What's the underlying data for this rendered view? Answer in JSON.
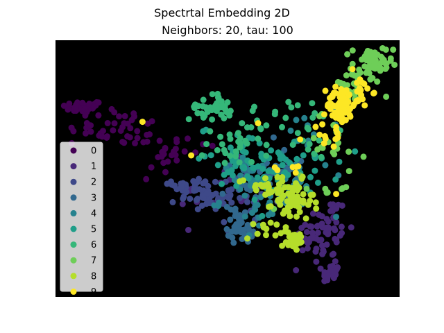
{
  "chart_data": {
    "type": "scatter",
    "title": "Spectrtal Embedding 2D",
    "subtitle": "Neighbors: 20, tau: 100",
    "xlabel": "",
    "ylabel": "",
    "xlim": [
      0,
      1
    ],
    "ylim": [
      0,
      1
    ],
    "axes_visible": false,
    "background": "#000000",
    "grid": false,
    "legend_position": "center-left",
    "colors": [
      "#440154",
      "#482878",
      "#3e4989",
      "#31688e",
      "#26828e",
      "#1f9e89",
      "#35b779",
      "#6ece58",
      "#b5de2b",
      "#fde725"
    ],
    "series": [
      {
        "name": "0",
        "clusters": [
          {
            "cx": 0.08,
            "cy": 0.74,
            "sx": 0.03,
            "sy": 0.012,
            "n": 45
          },
          {
            "cx": 0.18,
            "cy": 0.66,
            "sx": 0.07,
            "sy": 0.035,
            "n": 40
          },
          {
            "cx": 0.33,
            "cy": 0.58,
            "sx": 0.07,
            "sy": 0.04,
            "n": 22
          },
          {
            "cx": 0.3,
            "cy": 0.5,
            "sx": 0.03,
            "sy": 0.03,
            "n": 6
          }
        ]
      },
      {
        "name": "1",
        "clusters": [
          {
            "cx": 0.79,
            "cy": 0.26,
            "sx": 0.03,
            "sy": 0.07,
            "n": 55
          },
          {
            "cx": 0.73,
            "cy": 0.23,
            "sx": 0.02,
            "sy": 0.03,
            "n": 18
          },
          {
            "cx": 0.8,
            "cy": 0.09,
            "sx": 0.012,
            "sy": 0.02,
            "n": 25
          },
          {
            "cx": 0.48,
            "cy": 0.4,
            "sx": 0.06,
            "sy": 0.06,
            "n": 15
          }
        ]
      },
      {
        "name": "2",
        "clusters": [
          {
            "cx": 0.44,
            "cy": 0.39,
            "sx": 0.04,
            "sy": 0.025,
            "n": 50
          },
          {
            "cx": 0.4,
            "cy": 0.44,
            "sx": 0.03,
            "sy": 0.02,
            "n": 20
          },
          {
            "cx": 0.54,
            "cy": 0.37,
            "sx": 0.05,
            "sy": 0.05,
            "n": 15
          }
        ]
      },
      {
        "name": "3",
        "clusters": [
          {
            "cx": 0.54,
            "cy": 0.28,
            "sx": 0.02,
            "sy": 0.035,
            "n": 45
          },
          {
            "cx": 0.58,
            "cy": 0.44,
            "sx": 0.05,
            "sy": 0.05,
            "n": 25
          },
          {
            "cx": 0.64,
            "cy": 0.52,
            "sx": 0.05,
            "sy": 0.04,
            "n": 15
          }
        ]
      },
      {
        "name": "4",
        "clusters": [
          {
            "cx": 0.62,
            "cy": 0.38,
            "sx": 0.07,
            "sy": 0.06,
            "n": 40
          },
          {
            "cx": 0.75,
            "cy": 0.6,
            "sx": 0.04,
            "sy": 0.06,
            "n": 20
          },
          {
            "cx": 0.56,
            "cy": 0.48,
            "sx": 0.04,
            "sy": 0.03,
            "n": 15
          }
        ]
      },
      {
        "name": "5",
        "clusters": [
          {
            "cx": 0.6,
            "cy": 0.48,
            "sx": 0.08,
            "sy": 0.06,
            "n": 45
          },
          {
            "cx": 0.52,
            "cy": 0.58,
            "sx": 0.05,
            "sy": 0.04,
            "n": 20
          },
          {
            "cx": 0.72,
            "cy": 0.5,
            "sx": 0.05,
            "sy": 0.05,
            "n": 20
          }
        ]
      },
      {
        "name": "6",
        "clusters": [
          {
            "cx": 0.45,
            "cy": 0.74,
            "sx": 0.03,
            "sy": 0.025,
            "n": 40
          },
          {
            "cx": 0.54,
            "cy": 0.6,
            "sx": 0.05,
            "sy": 0.05,
            "n": 25
          },
          {
            "cx": 0.6,
            "cy": 0.68,
            "sx": 0.06,
            "sy": 0.04,
            "n": 18
          },
          {
            "cx": 0.74,
            "cy": 0.66,
            "sx": 0.03,
            "sy": 0.06,
            "n": 15
          }
        ]
      },
      {
        "name": "7",
        "clusters": [
          {
            "cx": 0.92,
            "cy": 0.9,
            "sx": 0.03,
            "sy": 0.04,
            "n": 55
          },
          {
            "cx": 0.86,
            "cy": 0.82,
            "sx": 0.03,
            "sy": 0.03,
            "n": 25
          },
          {
            "cx": 0.8,
            "cy": 0.6,
            "sx": 0.05,
            "sy": 0.06,
            "n": 18
          },
          {
            "cx": 0.76,
            "cy": 0.42,
            "sx": 0.06,
            "sy": 0.04,
            "n": 10
          }
        ]
      },
      {
        "name": "8",
        "clusters": [
          {
            "cx": 0.69,
            "cy": 0.37,
            "sx": 0.03,
            "sy": 0.04,
            "n": 55
          },
          {
            "cx": 0.69,
            "cy": 0.22,
            "sx": 0.02,
            "sy": 0.02,
            "n": 28
          },
          {
            "cx": 0.61,
            "cy": 0.43,
            "sx": 0.04,
            "sy": 0.02,
            "n": 25
          },
          {
            "cx": 0.62,
            "cy": 0.26,
            "sx": 0.03,
            "sy": 0.03,
            "n": 10
          }
        ]
      },
      {
        "name": "9",
        "clusters": [
          {
            "cx": 0.83,
            "cy": 0.75,
            "sx": 0.02,
            "sy": 0.04,
            "n": 65
          },
          {
            "cx": 0.88,
            "cy": 0.8,
            "sx": 0.02,
            "sy": 0.03,
            "n": 20
          },
          {
            "cx": 0.79,
            "cy": 0.62,
            "sx": 0.03,
            "sy": 0.03,
            "n": 12
          },
          {
            "cx": 0.7,
            "cy": 0.5,
            "sx": 0.02,
            "sy": 0.02,
            "n": 6
          },
          {
            "cx": 0.25,
            "cy": 0.68,
            "sx": 0.01,
            "sy": 0.01,
            "n": 1
          },
          {
            "cx": 0.38,
            "cy": 0.57,
            "sx": 0.01,
            "sy": 0.01,
            "n": 1
          },
          {
            "cx": 0.59,
            "cy": 0.66,
            "sx": 0.01,
            "sy": 0.01,
            "n": 1
          },
          {
            "cx": 0.82,
            "cy": 0.4,
            "sx": 0.01,
            "sy": 0.01,
            "n": 1
          }
        ]
      }
    ]
  }
}
